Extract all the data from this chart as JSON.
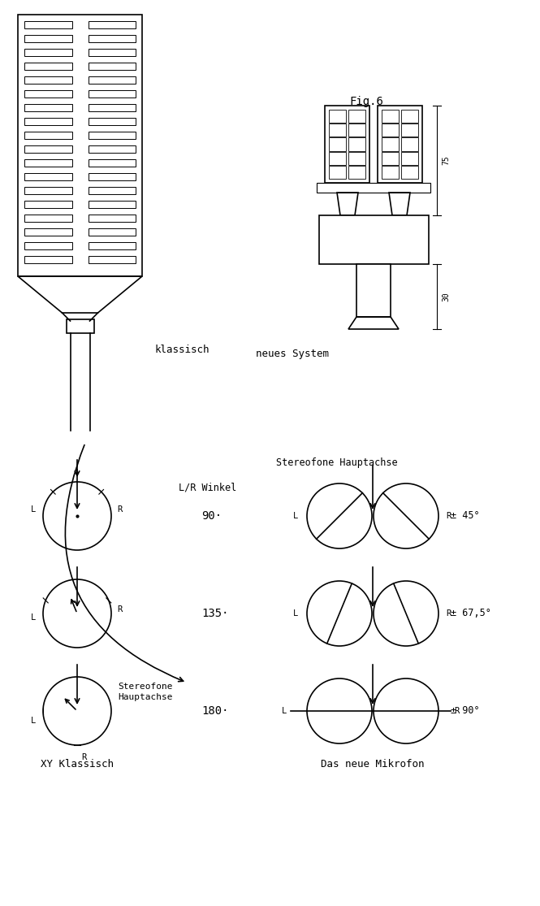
{
  "fig_label": "Fig.6",
  "label_klassisch": "klassisch",
  "label_neues_system": "neues System",
  "label_lr_winkel": "L/R Winkel",
  "label_stereofone_hauptachse_top": "Stereofone Hauptachse",
  "label_stereofone_hauptachse_arrow": "Stereofone\nHauptachse",
  "label_xy_klassisch": "XY Klassisch",
  "label_das_neue": "Das neue Mikrofon",
  "angles": [
    "90·",
    "135·",
    "180·"
  ],
  "right_angles": [
    "± 45°",
    "± 67,5°",
    "± 90°"
  ],
  "dim_75": "75",
  "dim_30": "30",
  "bg_color": "#ffffff",
  "line_color": "#000000"
}
